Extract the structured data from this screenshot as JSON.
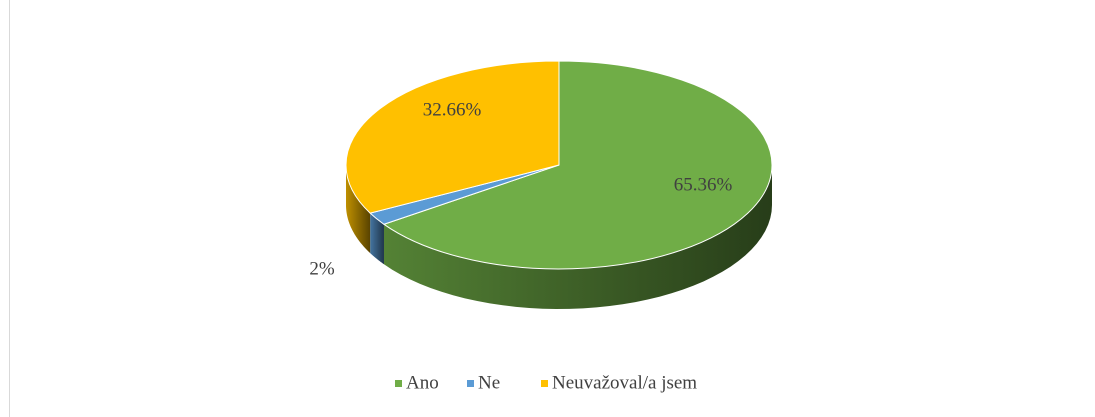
{
  "chart_data": {
    "type": "pie",
    "categories": [
      "Ano",
      "Ne",
      "Neuvažoval/a jsem"
    ],
    "values": [
      65.36,
      2,
      32.66
    ],
    "value_labels": [
      "65.36%",
      "2%",
      "32.66%"
    ],
    "colors": [
      "#70ad47",
      "#5b9bd5",
      "#ffc000"
    ],
    "legend": "bottom"
  }
}
